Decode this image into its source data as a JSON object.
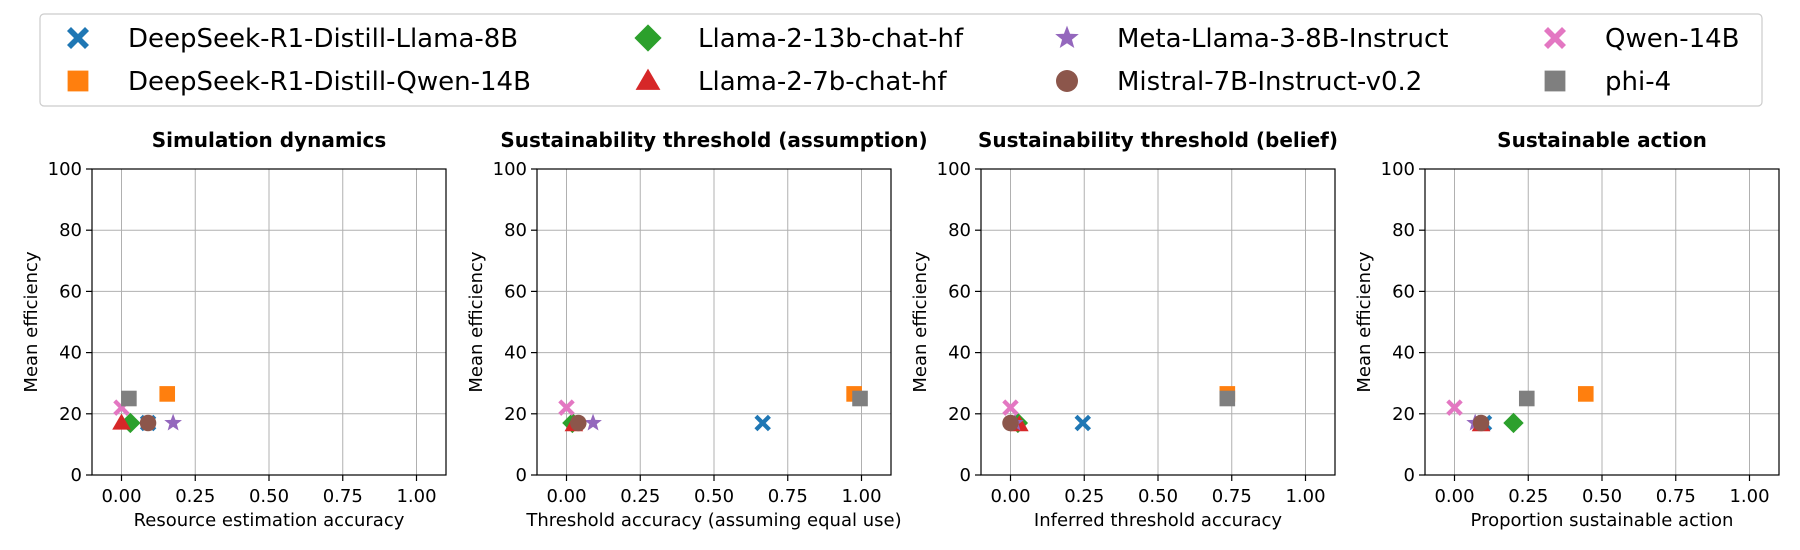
{
  "models": [
    {
      "name": "DeepSeek-R1-Distill-Llama-8B",
      "color": "#1f77b4",
      "marker": "x-marker"
    },
    {
      "name": "DeepSeek-R1-Distill-Qwen-14B",
      "color": "#ff7f0e",
      "marker": "square"
    },
    {
      "name": "Llama-2-13b-chat-hf",
      "color": "#2ca02c",
      "marker": "diamond"
    },
    {
      "name": "Llama-2-7b-chat-hf",
      "color": "#d62728",
      "marker": "triangle"
    },
    {
      "name": "Meta-Llama-3-8B-Instruct",
      "color": "#9467bd",
      "marker": "star"
    },
    {
      "name": "Mistral-7B-Instruct-v0.2",
      "color": "#8c564b",
      "marker": "circle"
    },
    {
      "name": "Qwen-14B",
      "color": "#e377c2",
      "marker": "x-marker"
    },
    {
      "name": "phi-4",
      "color": "#7f7f7f",
      "marker": "square"
    }
  ],
  "chart_data": [
    {
      "type": "scatter",
      "title": "Simulation dynamics",
      "xlabel": "Resource estimation accuracy",
      "ylabel": "Mean efficiency",
      "xlim": [
        -0.1,
        1.1
      ],
      "ylim": [
        0,
        100
      ],
      "xticks": [
        "0.00",
        "0.25",
        "0.50",
        "0.75",
        "1.00"
      ],
      "yticks": [
        "0",
        "20",
        "40",
        "60",
        "80",
        "100"
      ],
      "grid": true,
      "series": [
        {
          "name": "DeepSeek-R1-Distill-Llama-8B",
          "x": 0.09,
          "y": 17
        },
        {
          "name": "DeepSeek-R1-Distill-Qwen-14B",
          "x": 0.155,
          "y": 26.5
        },
        {
          "name": "Llama-2-13b-chat-hf",
          "x": 0.03,
          "y": 17
        },
        {
          "name": "Llama-2-7b-chat-hf",
          "x": 0.0,
          "y": 17
        },
        {
          "name": "Meta-Llama-3-8B-Instruct",
          "x": 0.175,
          "y": 17
        },
        {
          "name": "Mistral-7B-Instruct-v0.2",
          "x": 0.09,
          "y": 17
        },
        {
          "name": "Qwen-14B",
          "x": 0.0,
          "y": 22
        },
        {
          "name": "phi-4",
          "x": 0.025,
          "y": 25
        }
      ]
    },
    {
      "type": "scatter",
      "title": "Sustainability threshold (assumption)",
      "xlabel": "Threshold accuracy (assuming equal use)",
      "ylabel": "Mean efficiency",
      "xlim": [
        -0.1,
        1.1
      ],
      "ylim": [
        0,
        100
      ],
      "xticks": [
        "0.00",
        "0.25",
        "0.50",
        "0.75",
        "1.00"
      ],
      "yticks": [
        "0",
        "20",
        "40",
        "60",
        "80",
        "100"
      ],
      "grid": true,
      "series": [
        {
          "name": "DeepSeek-R1-Distill-Llama-8B",
          "x": 0.665,
          "y": 17
        },
        {
          "name": "DeepSeek-R1-Distill-Qwen-14B",
          "x": 0.975,
          "y": 26.5
        },
        {
          "name": "Llama-2-13b-chat-hf",
          "x": 0.02,
          "y": 17
        },
        {
          "name": "Llama-2-7b-chat-hf",
          "x": 0.025,
          "y": 16.5
        },
        {
          "name": "Meta-Llama-3-8B-Instruct",
          "x": 0.09,
          "y": 17
        },
        {
          "name": "Mistral-7B-Instruct-v0.2",
          "x": 0.04,
          "y": 17
        },
        {
          "name": "Qwen-14B",
          "x": 0.0,
          "y": 22
        },
        {
          "name": "phi-4",
          "x": 0.995,
          "y": 25
        }
      ]
    },
    {
      "type": "scatter",
      "title": "Sustainability threshold (belief)",
      "xlabel": "Inferred threshold accuracy",
      "ylabel": "Mean efficiency",
      "xlim": [
        -0.1,
        1.1
      ],
      "ylim": [
        0,
        100
      ],
      "xticks": [
        "0.00",
        "0.25",
        "0.50",
        "0.75",
        "1.00"
      ],
      "yticks": [
        "0",
        "20",
        "40",
        "60",
        "80",
        "100"
      ],
      "grid": true,
      "series": [
        {
          "name": "DeepSeek-R1-Distill-Llama-8B",
          "x": 0.245,
          "y": 17
        },
        {
          "name": "DeepSeek-R1-Distill-Qwen-14B",
          "x": 0.735,
          "y": 26.5
        },
        {
          "name": "Llama-2-13b-chat-hf",
          "x": 0.025,
          "y": 17
        },
        {
          "name": "Llama-2-7b-chat-hf",
          "x": 0.03,
          "y": 16.5
        },
        {
          "name": "Meta-Llama-3-8B-Instruct",
          "x": 0.015,
          "y": 17
        },
        {
          "name": "Mistral-7B-Instruct-v0.2",
          "x": 0.0,
          "y": 17
        },
        {
          "name": "Qwen-14B",
          "x": 0.0,
          "y": 22
        },
        {
          "name": "phi-4",
          "x": 0.735,
          "y": 25
        }
      ]
    },
    {
      "type": "scatter",
      "title": "Sustainable action",
      "xlabel": "Proportion sustainable action",
      "ylabel": "Mean efficiency",
      "xlim": [
        -0.1,
        1.1
      ],
      "ylim": [
        0,
        100
      ],
      "xticks": [
        "0.00",
        "0.25",
        "0.50",
        "0.75",
        "1.00"
      ],
      "yticks": [
        "0",
        "20",
        "40",
        "60",
        "80",
        "100"
      ],
      "grid": true,
      "series": [
        {
          "name": "DeepSeek-R1-Distill-Llama-8B",
          "x": 0.1,
          "y": 17
        },
        {
          "name": "DeepSeek-R1-Distill-Qwen-14B",
          "x": 0.445,
          "y": 26.5
        },
        {
          "name": "Llama-2-13b-chat-hf",
          "x": 0.2,
          "y": 17
        },
        {
          "name": "Llama-2-7b-chat-hf",
          "x": 0.09,
          "y": 16.5
        },
        {
          "name": "Meta-Llama-3-8B-Instruct",
          "x": 0.07,
          "y": 17
        },
        {
          "name": "Mistral-7B-Instruct-v0.2",
          "x": 0.09,
          "y": 17
        },
        {
          "name": "Qwen-14B",
          "x": 0.0,
          "y": 22
        },
        {
          "name": "phi-4",
          "x": 0.245,
          "y": 25
        }
      ]
    }
  ]
}
